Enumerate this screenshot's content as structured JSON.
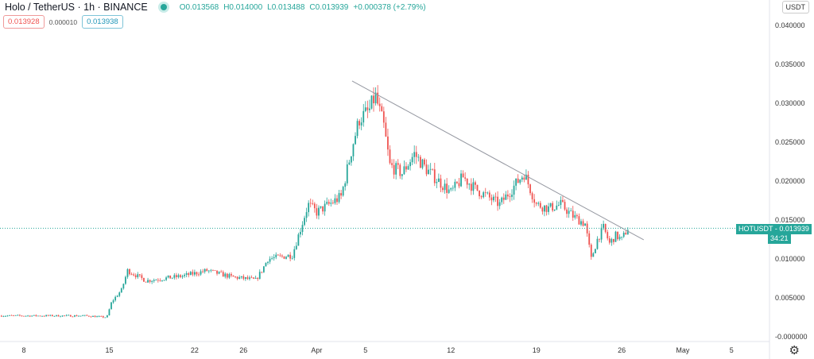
{
  "header": {
    "symbol": "Holo / TetherUS · 1h · BINANCE",
    "open": "O0.013568",
    "high": "H0.014000",
    "low": "L0.013488",
    "close": "C0.013939",
    "change": "+0.000378 (+2.79%)"
  },
  "quote": {
    "sell": "0.013928",
    "spread": "0.000010",
    "buy": "0.013938"
  },
  "currency_button": "USDT",
  "price_tag": {
    "label": "HOTUSDT - 0.013939",
    "countdown": "34:21"
  },
  "colors": {
    "up": "#26a69a",
    "down": "#ef5350"
  },
  "chart_data": {
    "type": "candlestick",
    "title": "Holo / TetherUS 1h BINANCE",
    "y_ticks": [
      "0.040000",
      "0.035000",
      "0.030000",
      "0.025000",
      "0.020000",
      "0.015000",
      "0.010000",
      "0.005000",
      "-0.000000"
    ],
    "y_tick_values": [
      0.04,
      0.035,
      0.03,
      0.025,
      0.02,
      0.015,
      0.01,
      0.005,
      0
    ],
    "ylim": [
      0,
      0.04
    ],
    "x_ticks": [
      {
        "label": "8",
        "day": 0
      },
      {
        "label": "15",
        "day": 7
      },
      {
        "label": "22",
        "day": 14
      },
      {
        "label": "26",
        "day": 18
      },
      {
        "label": "Apr",
        "day": 24
      },
      {
        "label": "5",
        "day": 28
      },
      {
        "label": "12",
        "day": 35
      },
      {
        "label": "19",
        "day": 42
      },
      {
        "label": "26",
        "day": 49
      },
      {
        "label": "May",
        "day": 54
      },
      {
        "label": "5",
        "day": 58
      }
    ],
    "x_unit": "days since Mar 8",
    "close_path": [
      [
        -2,
        0.0027
      ],
      [
        5,
        0.0027
      ],
      [
        6.8,
        0.0025
      ],
      [
        7.2,
        0.0045
      ],
      [
        8,
        0.006
      ],
      [
        8.5,
        0.0085
      ],
      [
        10,
        0.0072
      ],
      [
        13,
        0.0078
      ],
      [
        15,
        0.0085
      ],
      [
        17,
        0.0077
      ],
      [
        19,
        0.0073
      ],
      [
        19.5,
        0.0085
      ],
      [
        20,
        0.01
      ],
      [
        22,
        0.0105
      ],
      [
        23.3,
        0.017
      ],
      [
        24,
        0.016
      ],
      [
        26,
        0.018
      ],
      [
        27,
        0.025
      ],
      [
        27.5,
        0.028
      ],
      [
        28.3,
        0.029
      ],
      [
        28.8,
        0.031
      ],
      [
        29.5,
        0.027
      ],
      [
        30,
        0.022
      ],
      [
        31,
        0.021
      ],
      [
        32,
        0.0235
      ],
      [
        33,
        0.0215
      ],
      [
        34,
        0.02
      ],
      [
        35,
        0.0185
      ],
      [
        36,
        0.0205
      ],
      [
        37,
        0.019
      ],
      [
        38,
        0.018
      ],
      [
        39,
        0.017
      ],
      [
        40,
        0.019
      ],
      [
        41,
        0.021
      ],
      [
        42,
        0.017
      ],
      [
        43,
        0.0165
      ],
      [
        44,
        0.017
      ],
      [
        45,
        0.0155
      ],
      [
        46,
        0.0145
      ],
      [
        46.5,
        0.01
      ],
      [
        47,
        0.0125
      ],
      [
        47.5,
        0.014
      ],
      [
        48,
        0.012
      ],
      [
        48.5,
        0.013
      ],
      [
        49,
        0.0125
      ],
      [
        49.5,
        0.013939
      ]
    ],
    "trendline": [
      [
        26.9,
        0.03286
      ],
      [
        50.8,
        0.01245
      ]
    ],
    "last_price": 0.013939
  }
}
